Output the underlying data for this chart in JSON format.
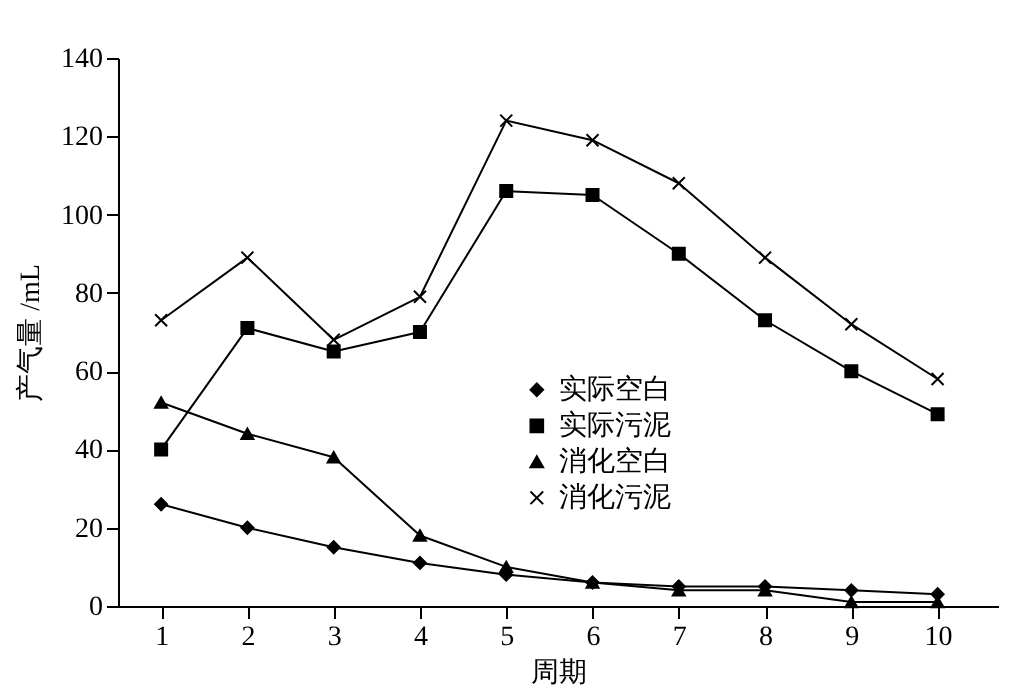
{
  "chart_data": {
    "type": "line",
    "xlabel": "周期",
    "ylabel": "产气量 /mL",
    "categories": [
      "1",
      "2",
      "3",
      "4",
      "5",
      "6",
      "7",
      "8",
      "9",
      "10"
    ],
    "series": [
      {
        "name": "实际空白",
        "color": "#000000",
        "marker": "diamond",
        "values": [
          26,
          20,
          15,
          11,
          8,
          6,
          5,
          5,
          4,
          3
        ]
      },
      {
        "name": "实际污泥",
        "color": "#000000",
        "marker": "square",
        "values": [
          40,
          71,
          65,
          70,
          106,
          105,
          90,
          73,
          60,
          49
        ]
      },
      {
        "name": "消化空白",
        "color": "#000000",
        "marker": "triangle",
        "values": [
          52,
          44,
          38,
          18,
          10,
          6,
          4,
          4,
          1,
          1
        ]
      },
      {
        "name": "消化污泥",
        "color": "#000000",
        "marker": "cross",
        "values": [
          73,
          89,
          68,
          79,
          124,
          119,
          108,
          89,
          72,
          58
        ]
      }
    ],
    "ylim": [
      0,
      140
    ],
    "yticks": [
      0,
      20,
      40,
      60,
      80,
      100,
      120,
      140
    ],
    "grid": false,
    "legend": "center",
    "line_style": "solid"
  }
}
